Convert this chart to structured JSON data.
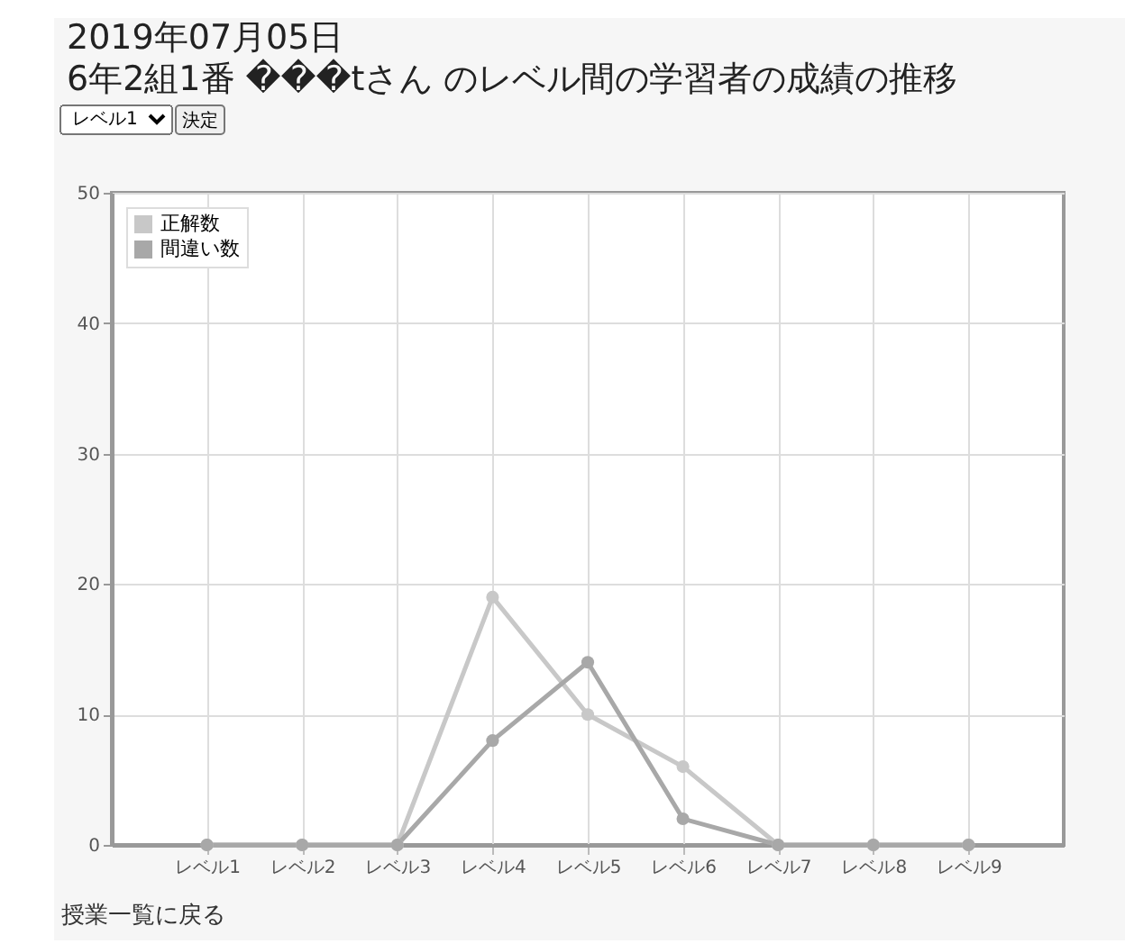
{
  "chart_data": {
    "type": "line",
    "title": "2019年07月05日",
    "subtitle": "6年2組1番 ���tさん のレベル間の学習者の成績の推移",
    "categories": [
      "レベル1",
      "レベル2",
      "レベル3",
      "レベル4",
      "レベル5",
      "レベル6",
      "レベル7",
      "レベル8",
      "レベル9"
    ],
    "series": [
      {
        "name": "正解数",
        "color": "#c8c8c8",
        "values": [
          0,
          0,
          0,
          19,
          10,
          6,
          0,
          0,
          0
        ]
      },
      {
        "name": "間違い数",
        "color": "#a8a8a8",
        "values": [
          0,
          0,
          0,
          8,
          14,
          2,
          0,
          0,
          0
        ]
      }
    ],
    "ylim": [
      0,
      50
    ],
    "yticks": [
      0,
      10,
      20,
      30,
      40,
      50
    ],
    "grid": true,
    "legend": "top left",
    "marker": "circle",
    "line_style": "solid",
    "annotations": [
      "レベル1",
      "決定",
      "授業一覧に戻る"
    ]
  }
}
